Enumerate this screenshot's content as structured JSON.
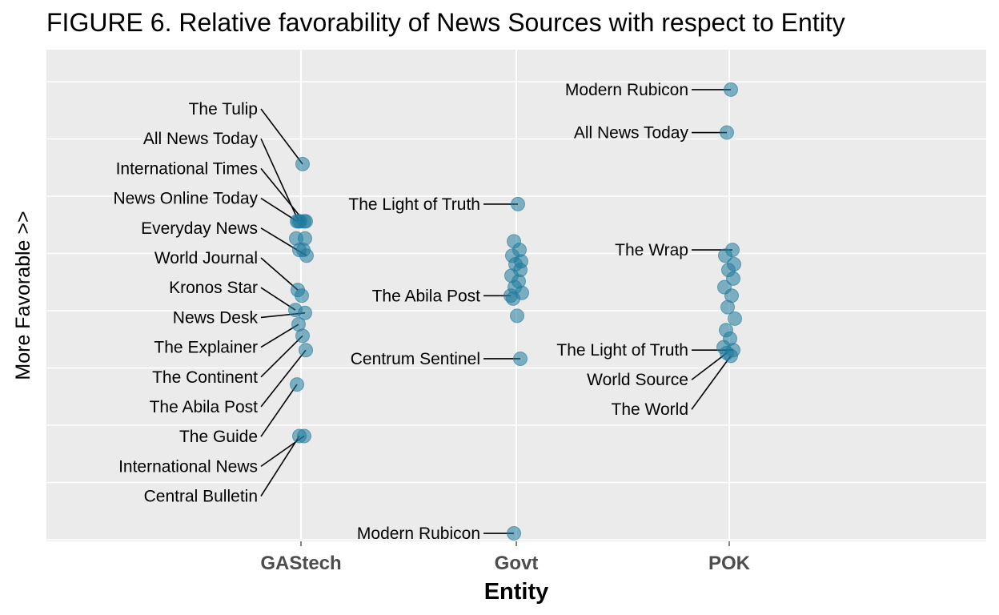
{
  "chart_data": {
    "type": "scatter",
    "title": "FIGURE 6. Relative favorability of News Sources with respect to Entity",
    "xlabel": "Entity",
    "ylabel": "More Favorable >>",
    "categories": [
      "GAStech",
      "Govt",
      "POK"
    ],
    "y_ticks_shown": false,
    "grid": true,
    "point_color": "#1F7A9C",
    "panel_color": "#EBEBEB",
    "series": [
      {
        "category": "GAStech",
        "points": [
          {
            "y": 4.1,
            "label": "The Tulip"
          },
          {
            "y": 3.1,
            "label": "All News Today"
          },
          {
            "y": 3.1,
            "label": "International Times"
          },
          {
            "y": 3.1,
            "label": "News Online Today"
          },
          {
            "y": 3.1
          },
          {
            "y": 3.1
          },
          {
            "y": 2.8
          },
          {
            "y": 2.8
          },
          {
            "y": 2.6
          },
          {
            "y": 2.6
          },
          {
            "y": 2.5,
            "label": "Everyday News"
          },
          {
            "y": 1.9,
            "label": "World Journal"
          },
          {
            "y": 1.8
          },
          {
            "y": 1.55,
            "label": "Kronos Star"
          },
          {
            "y": 1.5,
            "label": "News Desk"
          },
          {
            "y": 1.3,
            "label": "The Explainer"
          },
          {
            "y": 1.1,
            "label": "The Continent"
          },
          {
            "y": 0.85,
            "label": "The Abila Post"
          },
          {
            "y": 0.25,
            "label": "The Guide"
          },
          {
            "y": -0.65,
            "label": "International News"
          },
          {
            "y": -0.65,
            "label": "Central Bulletin"
          }
        ]
      },
      {
        "category": "Govt",
        "points": [
          {
            "y": 3.4,
            "label": "The Light of Truth"
          },
          {
            "y": 2.75
          },
          {
            "y": 2.6
          },
          {
            "y": 2.5
          },
          {
            "y": 2.4
          },
          {
            "y": 2.35
          },
          {
            "y": 2.25
          },
          {
            "y": 2.15
          },
          {
            "y": 2.05
          },
          {
            "y": 1.95
          },
          {
            "y": 1.85
          },
          {
            "y": 1.75
          },
          {
            "y": 1.45
          },
          {
            "y": 1.8,
            "label": "The Abila Post"
          },
          {
            "y": 0.7,
            "label": "Centrum Sentinel"
          },
          {
            "y": -2.35,
            "label": "Modern Rubicon"
          }
        ]
      },
      {
        "category": "POK",
        "points": [
          {
            "y": 5.4,
            "label": "Modern Rubicon"
          },
          {
            "y": 4.65,
            "label": "All News Today"
          },
          {
            "y": 2.6,
            "label": "The Wrap"
          },
          {
            "y": 2.5
          },
          {
            "y": 2.35
          },
          {
            "y": 2.25
          },
          {
            "y": 2.1
          },
          {
            "y": 1.95
          },
          {
            "y": 1.8
          },
          {
            "y": 1.6
          },
          {
            "y": 1.4
          },
          {
            "y": 1.2
          },
          {
            "y": 1.05
          },
          {
            "y": 0.9
          },
          {
            "y": 0.85,
            "label": "The Light of Truth"
          },
          {
            "y": 0.8,
            "label": "World Source"
          },
          {
            "y": 0.75,
            "label": "The World"
          }
        ]
      }
    ]
  }
}
